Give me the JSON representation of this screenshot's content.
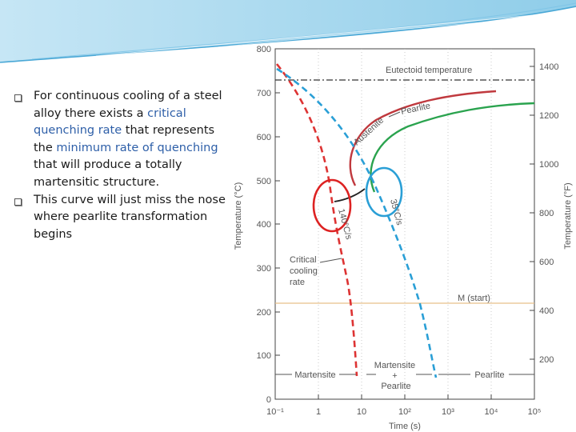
{
  "bullets": [
    {
      "parts": [
        {
          "text": "For continuous cooling of a steel alloy there exists a ",
          "highlight": false
        },
        {
          "text": "critical quenching rate",
          "highlight": true
        },
        {
          "text": " that represents the ",
          "highlight": false
        },
        {
          "text": "minimum rate of quenching",
          "highlight": true
        },
        {
          "text": " that will produce a totally martensitic structure.",
          "highlight": false
        }
      ]
    },
    {
      "parts": [
        {
          "text": "This curve will just miss the nose where pearlite transformation begins",
          "highlight": false
        }
      ]
    }
  ],
  "diagram": {
    "y_axis_left_label": "Temperature (°C)",
    "y_axis_right_label": "Temperature (°F)",
    "x_axis_label": "Time (s)",
    "left_ticks": [
      "0",
      "100",
      "200",
      "300",
      "400",
      "500",
      "600",
      "700",
      "800"
    ],
    "right_ticks": [
      "200",
      "400",
      "600",
      "800",
      "1000",
      "1200",
      "1400"
    ],
    "x_ticks": [
      "10⁻¹",
      "1",
      "10",
      "10²",
      "10³",
      "10⁴",
      "10⁵"
    ],
    "eutectoid_label": "Eutectoid temperature",
    "pearlite_label": "Pearlite",
    "austenite_label": "Austenite",
    "ms_label": "M (start)",
    "critical_label": "Critical cooling rate",
    "rate_label_a": "140°C/s",
    "rate_label_b": "35°C/s",
    "bottom_labels": [
      "Martensite",
      "Martensite + Pearlite",
      "Pearlite"
    ],
    "colors": {
      "critical_curve": "#dd3333",
      "slow_curve": "#2a9fd6",
      "austenite_start": "#c0393e",
      "pearlite_finish": "#2aa34e",
      "eutectoid_line": "#333333",
      "ms_line": "#e8c08a",
      "grid": "#bbbbbb"
    }
  }
}
